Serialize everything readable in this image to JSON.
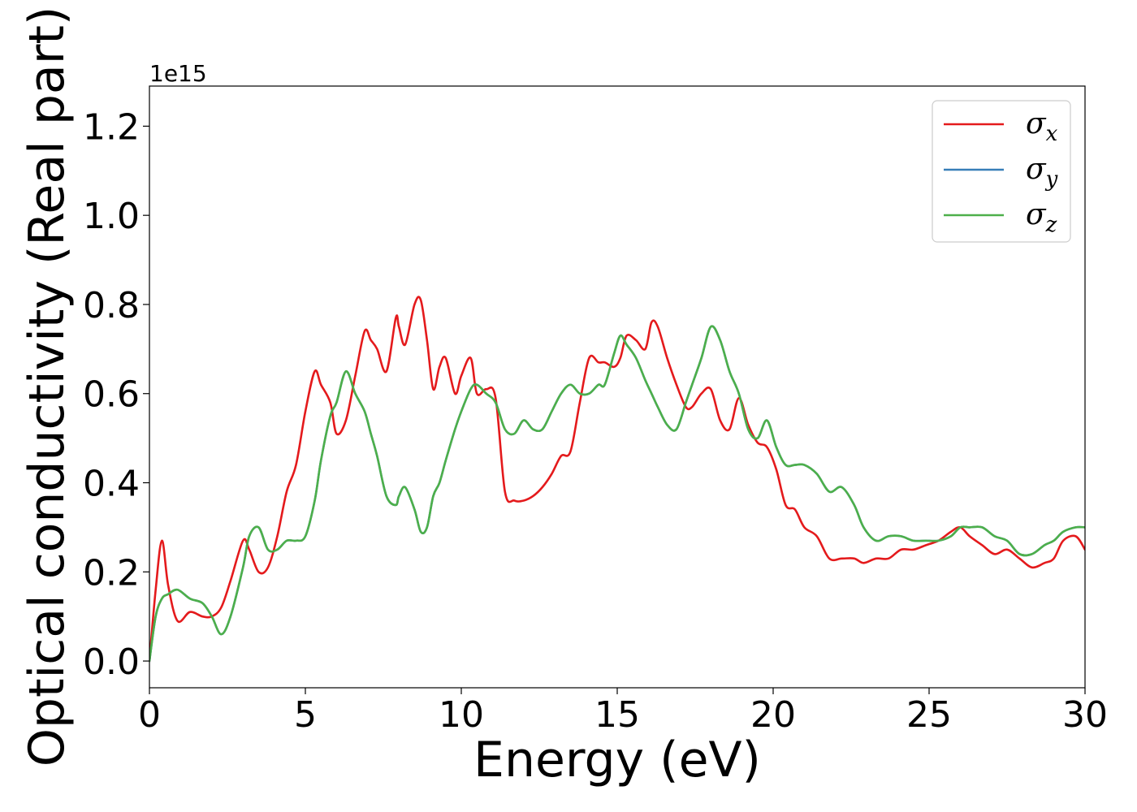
{
  "chart_data": {
    "type": "line",
    "xlabel": "Energy (eV)",
    "ylabel": "Optical conductivity (Real part)",
    "y_offset_label": "1e15",
    "xlim": [
      0,
      30
    ],
    "ylim": [
      -0.06,
      1.29
    ],
    "x_ticks": [
      0,
      5,
      10,
      15,
      20,
      25,
      30
    ],
    "x_tick_labels": [
      "0",
      "5",
      "10",
      "15",
      "20",
      "25",
      "30"
    ],
    "y_ticks": [
      0.0,
      0.2,
      0.4,
      0.6,
      0.8,
      1.0,
      1.2
    ],
    "y_tick_labels": [
      "0.0",
      "0.2",
      "0.4",
      "0.6",
      "0.8",
      "1.0",
      "1.2"
    ],
    "grid": false,
    "legend_position": "top-right",
    "x": [
      0,
      0.2,
      0.4,
      0.6,
      0.9,
      1.3,
      1.7,
      2.0,
      2.3,
      2.6,
      3.0,
      3.2,
      3.5,
      3.8,
      4.1,
      4.4,
      4.7,
      5.0,
      5.3,
      5.5,
      5.8,
      6.0,
      6.3,
      6.6,
      6.9,
      7.1,
      7.3,
      7.6,
      7.9,
      8.0,
      8.2,
      8.5,
      8.7,
      8.9,
      9.1,
      9.3,
      9.5,
      9.8,
      10.0,
      10.3,
      10.5,
      10.8,
      11.1,
      11.4,
      11.7,
      12.0,
      12.3,
      12.6,
      12.9,
      13.2,
      13.5,
      13.8,
      14.1,
      14.4,
      14.6,
      14.9,
      15.1,
      15.3,
      15.6,
      15.9,
      16.1,
      16.3,
      16.6,
      16.9,
      17.2,
      17.4,
      17.7,
      18.0,
      18.3,
      18.6,
      18.9,
      19.2,
      19.5,
      19.8,
      20.1,
      20.4,
      20.7,
      21.0,
      21.4,
      21.8,
      22.2,
      22.6,
      22.9,
      23.3,
      23.7,
      24.1,
      24.5,
      24.9,
      25.3,
      25.7,
      26.0,
      26.3,
      26.7,
      27.1,
      27.5,
      27.9,
      28.3,
      28.7,
      29.0,
      29.3,
      29.7,
      30.0
    ],
    "series": [
      {
        "name": "σx",
        "color": "#e41a1c",
        "values": [
          0.0,
          0.16,
          0.27,
          0.17,
          0.09,
          0.11,
          0.1,
          0.1,
          0.12,
          0.18,
          0.27,
          0.25,
          0.2,
          0.21,
          0.28,
          0.38,
          0.44,
          0.56,
          0.65,
          0.62,
          0.58,
          0.51,
          0.54,
          0.64,
          0.74,
          0.72,
          0.7,
          0.65,
          0.77,
          0.75,
          0.71,
          0.8,
          0.81,
          0.72,
          0.61,
          0.66,
          0.68,
          0.6,
          0.64,
          0.68,
          0.6,
          0.61,
          0.59,
          0.38,
          0.36,
          0.36,
          0.37,
          0.39,
          0.42,
          0.46,
          0.47,
          0.58,
          0.68,
          0.67,
          0.67,
          0.66,
          0.68,
          0.73,
          0.72,
          0.7,
          0.76,
          0.75,
          0.68,
          0.62,
          0.57,
          0.57,
          0.6,
          0.61,
          0.54,
          0.52,
          0.59,
          0.53,
          0.49,
          0.48,
          0.43,
          0.35,
          0.34,
          0.3,
          0.28,
          0.23,
          0.23,
          0.23,
          0.22,
          0.23,
          0.23,
          0.25,
          0.25,
          0.26,
          0.27,
          0.29,
          0.3,
          0.28,
          0.26,
          0.24,
          0.25,
          0.23,
          0.21,
          0.22,
          0.23,
          0.27,
          0.28,
          0.25
        ]
      },
      {
        "name": "σy",
        "color": "#377eb8",
        "values": [
          0.0,
          0.1,
          0.14,
          0.15,
          0.16,
          0.14,
          0.13,
          0.1,
          0.06,
          0.1,
          0.21,
          0.28,
          0.3,
          0.25,
          0.25,
          0.27,
          0.27,
          0.28,
          0.36,
          0.45,
          0.55,
          0.58,
          0.65,
          0.6,
          0.56,
          0.51,
          0.46,
          0.37,
          0.35,
          0.37,
          0.39,
          0.34,
          0.29,
          0.3,
          0.37,
          0.4,
          0.45,
          0.52,
          0.56,
          0.61,
          0.62,
          0.6,
          0.58,
          0.52,
          0.51,
          0.54,
          0.52,
          0.52,
          0.56,
          0.6,
          0.62,
          0.6,
          0.6,
          0.62,
          0.62,
          0.69,
          0.73,
          0.71,
          0.68,
          0.63,
          0.6,
          0.57,
          0.53,
          0.52,
          0.58,
          0.62,
          0.68,
          0.75,
          0.72,
          0.65,
          0.6,
          0.52,
          0.5,
          0.54,
          0.48,
          0.44,
          0.44,
          0.44,
          0.42,
          0.38,
          0.39,
          0.35,
          0.3,
          0.27,
          0.28,
          0.28,
          0.27,
          0.27,
          0.27,
          0.28,
          0.3,
          0.3,
          0.3,
          0.28,
          0.27,
          0.24,
          0.24,
          0.26,
          0.27,
          0.29,
          0.3,
          0.3
        ]
      },
      {
        "name": "σz",
        "color": "#4daf4a",
        "values": [
          0.0,
          0.1,
          0.14,
          0.15,
          0.16,
          0.14,
          0.13,
          0.1,
          0.06,
          0.1,
          0.21,
          0.28,
          0.3,
          0.25,
          0.25,
          0.27,
          0.27,
          0.28,
          0.36,
          0.45,
          0.55,
          0.58,
          0.65,
          0.6,
          0.56,
          0.51,
          0.46,
          0.37,
          0.35,
          0.37,
          0.39,
          0.34,
          0.29,
          0.3,
          0.37,
          0.4,
          0.45,
          0.52,
          0.56,
          0.61,
          0.62,
          0.6,
          0.58,
          0.52,
          0.51,
          0.54,
          0.52,
          0.52,
          0.56,
          0.6,
          0.62,
          0.6,
          0.6,
          0.62,
          0.62,
          0.69,
          0.73,
          0.71,
          0.68,
          0.63,
          0.6,
          0.57,
          0.53,
          0.52,
          0.58,
          0.62,
          0.68,
          0.75,
          0.72,
          0.65,
          0.6,
          0.52,
          0.5,
          0.54,
          0.48,
          0.44,
          0.44,
          0.44,
          0.42,
          0.38,
          0.39,
          0.35,
          0.3,
          0.27,
          0.28,
          0.28,
          0.27,
          0.27,
          0.27,
          0.28,
          0.3,
          0.3,
          0.3,
          0.28,
          0.27,
          0.24,
          0.24,
          0.26,
          0.27,
          0.29,
          0.3,
          0.3
        ]
      }
    ],
    "legend": [
      {
        "symbol": "σ",
        "sub": "x"
      },
      {
        "symbol": "σ",
        "sub": "y"
      },
      {
        "symbol": "σ",
        "sub": "z"
      }
    ]
  }
}
